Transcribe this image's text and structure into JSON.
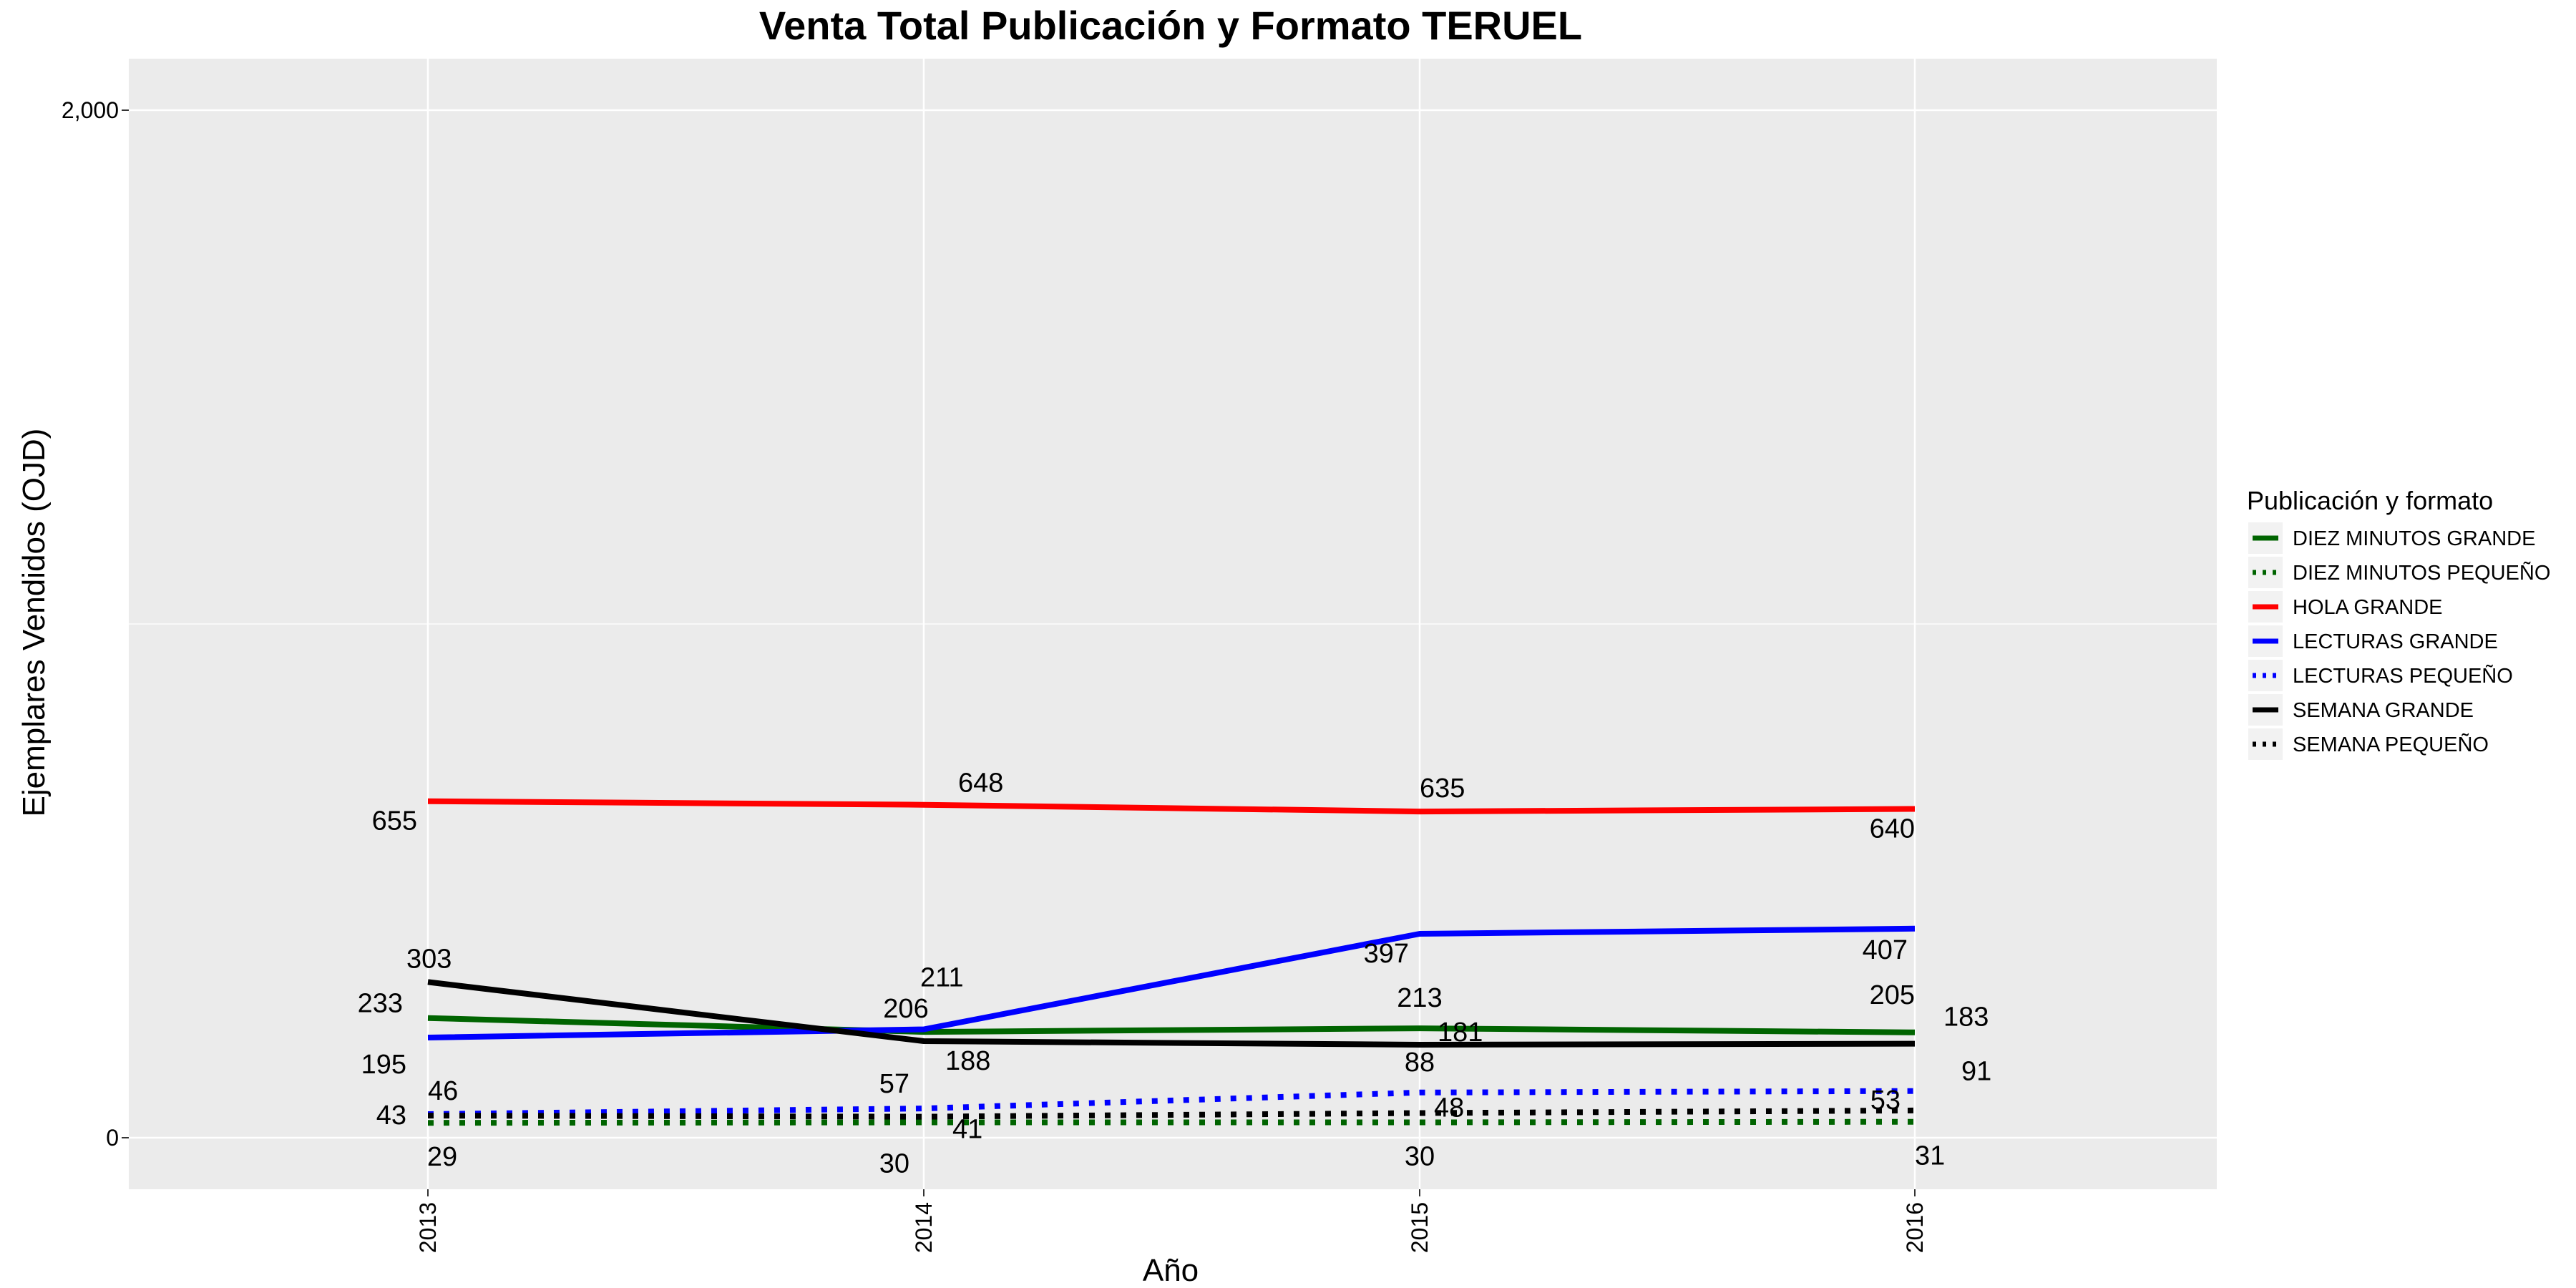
{
  "chart_data": {
    "type": "line",
    "title": "Venta Total Publicación y Formato  TERUEL",
    "xlabel": "Año",
    "ylabel": "Ejemplares Vendidos (OJD)",
    "x": [
      "2013",
      "2014",
      "2015",
      "2016"
    ],
    "ylim": [
      0,
      2000
    ],
    "yticks": [
      0,
      2000
    ],
    "ytick_labels": [
      "0",
      "2,000"
    ],
    "grid": true,
    "legend_title": "Publicación y formato",
    "legend_position": "right",
    "series": [
      {
        "name": "DIEZ MINUTOS GRANDE",
        "values": [
          233,
          206,
          213,
          205
        ],
        "color": "#006400",
        "dash": "solid"
      },
      {
        "name": "DIEZ MINUTOS PEQUEÑO",
        "values": [
          29,
          30,
          30,
          31
        ],
        "color": "#006400",
        "dash": "dotted"
      },
      {
        "name": "HOLA GRANDE",
        "values": [
          655,
          648,
          635,
          640
        ],
        "color": "#ff0000",
        "dash": "solid"
      },
      {
        "name": "LECTURAS GRANDE",
        "values": [
          195,
          211,
          397,
          407
        ],
        "color": "#0000ff",
        "dash": "solid"
      },
      {
        "name": "LECTURAS PEQUEÑO",
        "values": [
          46,
          57,
          88,
          91
        ],
        "color": "#0000ff",
        "dash": "dotted"
      },
      {
        "name": "SEMANA GRANDE",
        "values": [
          303,
          188,
          181,
          183
        ],
        "color": "#000000",
        "dash": "solid"
      },
      {
        "name": "SEMANA PEQUEÑO",
        "values": [
          43,
          41,
          48,
          53
        ],
        "color": "#000000",
        "dash": "dotted"
      }
    ]
  }
}
